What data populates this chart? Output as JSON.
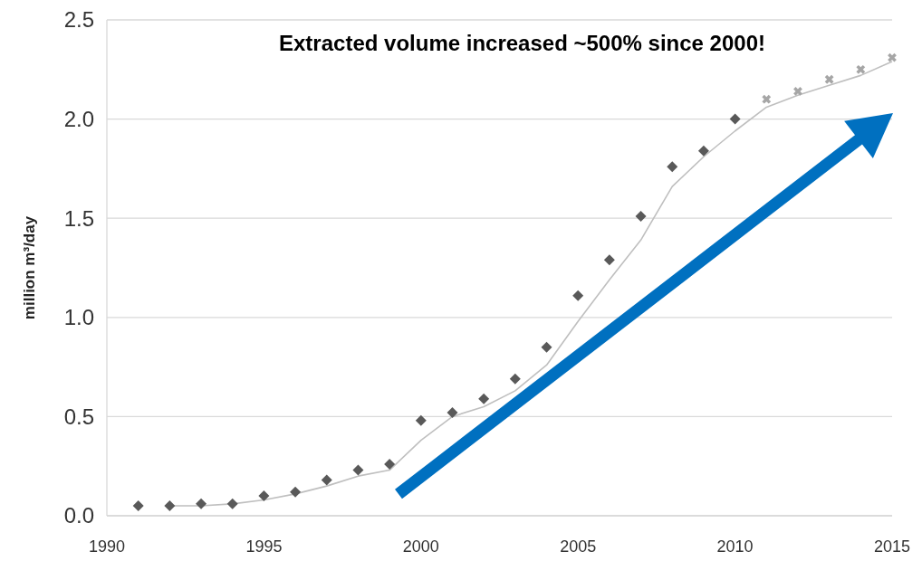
{
  "chart_data": {
    "type": "scatter",
    "title": "Extracted volume increased ~500% since 2000!",
    "ylabel": "million m³/day",
    "xlim": [
      1990,
      2015
    ],
    "xticks": [
      1990,
      1995,
      2000,
      2005,
      2010,
      2015
    ],
    "ylim": [
      0,
      2.5
    ],
    "yticks": [
      {
        "value": 0,
        "label": "0.0"
      },
      {
        "value": 0.5,
        "label": "0.5"
      },
      {
        "value": 1,
        "label": "1.0"
      },
      {
        "value": 1.5,
        "label": "1.5"
      },
      {
        "value": 2,
        "label": "2.0"
      },
      {
        "value": 2.5,
        "label": "2.5"
      }
    ],
    "grid": "y",
    "series": [
      {
        "type": "line",
        "color": "#bfbfbf",
        "marker": "none",
        "x": [
          1992,
          1993,
          1994,
          1995,
          1996,
          1997,
          1998,
          1999,
          2000,
          2001,
          2002,
          2003,
          2004,
          2005,
          2006,
          2007,
          2008,
          2009,
          2010,
          2011,
          2012,
          2013,
          2014,
          2015
        ],
        "values": [
          0.05,
          0.05,
          0.06,
          0.08,
          0.11,
          0.15,
          0.2,
          0.23,
          0.38,
          0.5,
          0.55,
          0.63,
          0.76,
          0.98,
          1.19,
          1.39,
          1.66,
          1.81,
          1.94,
          2.06,
          2.12,
          2.17,
          2.22,
          2.29
        ]
      },
      {
        "color": "#595959",
        "marker": "diamond",
        "x": [
          1991,
          1992,
          1993,
          1994,
          1995,
          1996,
          1997,
          1998,
          1999,
          2000,
          2001,
          2002,
          2003,
          2004,
          2005,
          2006,
          2007,
          2008,
          2009,
          2010
        ],
        "values": [
          0.05,
          0.05,
          0.06,
          0.06,
          0.1,
          0.12,
          0.18,
          0.23,
          0.26,
          0.48,
          0.52,
          0.59,
          0.69,
          0.85,
          1.11,
          1.29,
          1.51,
          1.76,
          1.84,
          2.0
        ]
      },
      {
        "color": "#a6a6a6",
        "marker": "cross",
        "x": [
          2011,
          2012,
          2013,
          2014,
          2015
        ],
        "values": [
          2.1,
          2.14,
          2.2,
          2.25,
          2.31
        ]
      }
    ]
  }
}
